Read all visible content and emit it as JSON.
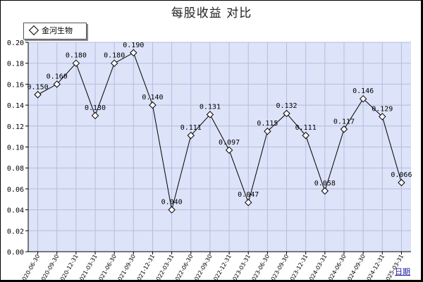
{
  "chart_data": {
    "type": "line",
    "title": "每股收益  对比",
    "legend": [
      "金河生物"
    ],
    "legend_position": "top-left",
    "x_link_label": "日期",
    "categories": [
      "2020-06-30",
      "2020-09-30",
      "2020-12-31",
      "2021-03-31",
      "2021-06-30",
      "2021-09-30",
      "2021-12-31",
      "2022-03-31",
      "2022-06-30",
      "2022-09-30",
      "2022-12-31",
      "2023-03-31",
      "2023-06-30",
      "2023-09-30",
      "2023-12-31",
      "2024-03-31",
      "2024-06-30",
      "2024-09-30",
      "2024-12-31",
      "2025-03-31"
    ],
    "series": [
      {
        "name": "金河生物",
        "values": [
          0.15,
          0.16,
          0.18,
          0.13,
          0.18,
          0.19,
          0.14,
          0.04,
          0.111,
          0.131,
          0.097,
          0.047,
          0.115,
          0.132,
          0.111,
          0.058,
          0.117,
          0.146,
          0.129,
          0.066
        ],
        "labels": [
          "0.150",
          "0.160",
          "0.180",
          "0.130",
          "0.180",
          "0.190",
          "0.140",
          "0.040",
          "0.111",
          "0.131",
          "0.097",
          "0.047",
          "0.115",
          "0.132",
          "0.111",
          "0.058",
          "0.117",
          "0.146",
          "0.129",
          "0.066"
        ]
      }
    ],
    "ylim": [
      0,
      0.2
    ],
    "y_ticks": [
      "0.00",
      "0.02",
      "0.04",
      "0.06",
      "0.08",
      "0.10",
      "0.12",
      "0.14",
      "0.16",
      "0.18",
      "0.20"
    ],
    "grid": true,
    "colors": {
      "plot_bg": "#dde3f8",
      "grid": "#b4bde0",
      "line": "#000000",
      "marker_fill": "#ffffff"
    }
  }
}
